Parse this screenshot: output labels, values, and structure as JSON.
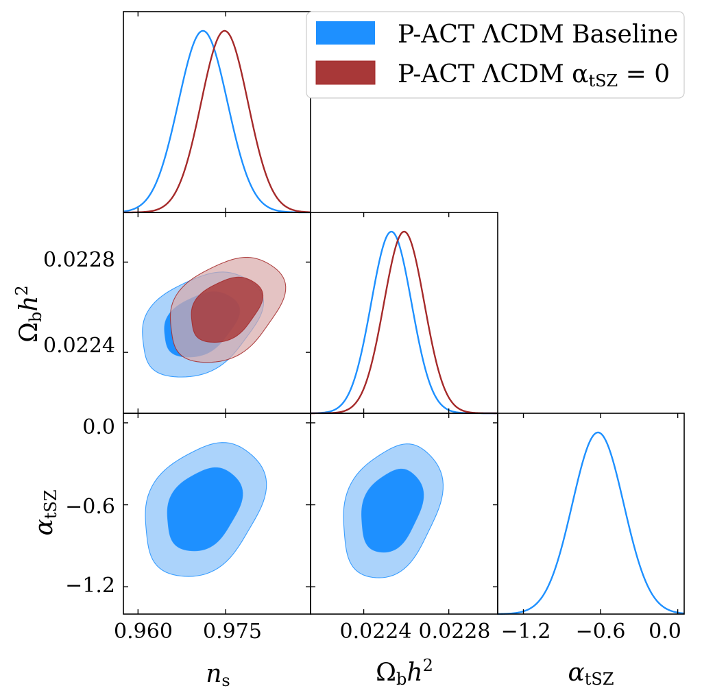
{
  "figure": "triangle corner plot",
  "colors": {
    "baseline_line": "#1e90ff",
    "baseline_inner": "#1e90ff",
    "baseline_outer": "#a6d1fb",
    "tsz0_line": "#a52a2a",
    "tsz0_inner": "#a83838",
    "tsz0_outer": "#d9aaaa"
  },
  "legend": {
    "placement": "top-right",
    "entries": [
      {
        "label": "P-ACT ΛCDM Baseline",
        "color": "#1e90ff"
      },
      {
        "label": "P-ACT ΛCDM α",
        "subscript": "tSZ",
        "suffix": " = 0",
        "color": "#a83838"
      }
    ]
  },
  "axis_labels": {
    "ns": {
      "main": "n",
      "sub": "s"
    },
    "ombh2": {
      "main": "Ω",
      "sub": "b",
      "tail": "h",
      "sup": "2"
    },
    "atsz": {
      "main": "α",
      "sub": "tSZ"
    }
  },
  "chart_data": [
    {
      "type": "line",
      "panel": "ns-1d",
      "xlim": [
        0.9575,
        0.9895
      ],
      "series": [
        {
          "name": "P-ACT ΛCDM Baseline",
          "mean": 0.9711,
          "sigma": 0.0042
        },
        {
          "name": "P-ACT ΛCDM αtSZ = 0",
          "mean": 0.9748,
          "sigma": 0.004
        }
      ]
    },
    {
      "type": "line",
      "panel": "ombh2-1d",
      "xlim": [
        0.02215,
        0.02303
      ],
      "xticks": [
        "0.0224",
        "0.0228"
      ],
      "series": [
        {
          "name": "P-ACT ΛCDM Baseline",
          "mean": 0.02253,
          "sigma": 9.5e-05
        },
        {
          "name": "P-ACT ΛCDM αtSZ = 0",
          "mean": 0.02259,
          "sigma": 9.5e-05
        }
      ]
    },
    {
      "type": "line",
      "panel": "atsz-1d",
      "xlim": [
        -1.4,
        0.05
      ],
      "xticks": [
        "−1.2",
        "−0.6",
        "0.0"
      ],
      "series": [
        {
          "name": "P-ACT ΛCDM Baseline",
          "mean": -0.62,
          "sigma": 0.2
        }
      ]
    },
    {
      "type": "scatter",
      "panel": "ns-ombh2",
      "contours": "68% and 95%",
      "xlim": [
        0.9575,
        0.9895
      ],
      "ylim": [
        0.02213,
        0.02302
      ],
      "yticks": [
        "0.0224",
        "0.0228"
      ],
      "series": [
        {
          "name": "P-ACT ΛCDM Baseline",
          "center": [
            0.9707,
            0.022525
          ],
          "sx": 0.0042,
          "sy": 9.5e-05,
          "rho": 0.35
        },
        {
          "name": "P-ACT ΛCDM αtSZ = 0",
          "center": [
            0.975,
            0.02259
          ],
          "sx": 0.004,
          "sy": 9.5e-05,
          "rho": 0.35
        }
      ]
    },
    {
      "type": "scatter",
      "panel": "ns-atsz",
      "contours": "68% and 95%",
      "xlim": [
        0.9575,
        0.9895
      ],
      "ylim": [
        -1.4,
        0.07
      ],
      "yticks": [
        "0.0",
        "−0.6",
        "−1.2"
      ],
      "xticks": [
        "0.960",
        "0.975"
      ],
      "series": [
        {
          "name": "P-ACT ΛCDM Baseline",
          "center": [
            0.9712,
            -0.63
          ],
          "sx": 0.0042,
          "sy": 0.2,
          "rho": 0.3
        }
      ]
    },
    {
      "type": "scatter",
      "panel": "ombh2-atsz",
      "contours": "68% and 95%",
      "xlim": [
        0.02215,
        0.02303
      ],
      "ylim": [
        -1.4,
        0.07
      ],
      "series": [
        {
          "name": "P-ACT ΛCDM Baseline",
          "center": [
            0.02253,
            -0.64
          ],
          "sx": 9.5e-05,
          "sy": 0.2,
          "rho": 0.3
        }
      ]
    }
  ]
}
